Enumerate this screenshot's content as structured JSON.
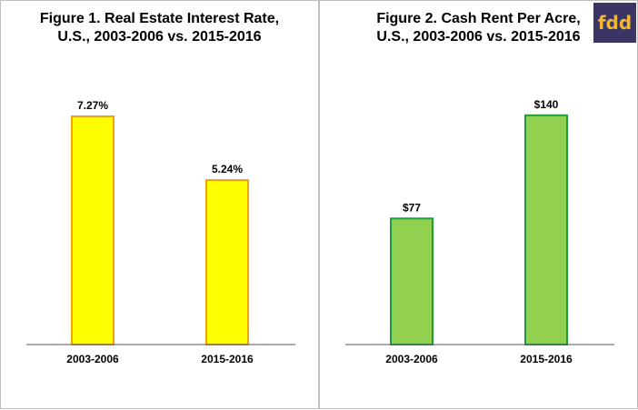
{
  "logo": {
    "text": "fdd",
    "bg_color": "#3b3566",
    "text_color": "#f2b632"
  },
  "chart_data": [
    {
      "type": "bar",
      "title_lines": [
        "Figure 1. Real Estate Interest Rate,",
        "U.S.,  2003-2006 vs. 2015-2016"
      ],
      "categories": [
        "2003-2006",
        "2015-2016"
      ],
      "values": [
        7.27,
        5.24
      ],
      "value_labels": [
        "7.27%",
        "5.24%"
      ],
      "ylim": [
        0,
        8.4
      ],
      "xlabel": "",
      "ylabel": "",
      "grid": false,
      "legend": "none",
      "bar_fill": "#ffff00",
      "bar_stroke": "#f0a500"
    },
    {
      "type": "bar",
      "title_lines": [
        "Figure 2. Cash Rent Per Acre,",
        "U.S., 2003-2006 vs. 2015-2016"
      ],
      "categories": [
        "2003-2006",
        "2015-2016"
      ],
      "values": [
        77,
        140
      ],
      "value_labels": [
        "$77",
        "$140"
      ],
      "ylim": [
        0,
        161
      ],
      "xlabel": "",
      "ylabel": "",
      "grid": false,
      "legend": "none",
      "bar_fill": "#92d050",
      "bar_stroke": "#1e9e3a"
    }
  ]
}
